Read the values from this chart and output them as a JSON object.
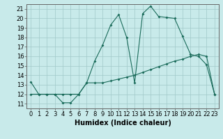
{
  "title": "",
  "xlabel": "Humidex (Indice chaleur)",
  "bg_color": "#c8eaea",
  "grid_color": "#a0c8c8",
  "line_color": "#1a6b5a",
  "xlim": [
    -0.5,
    23.5
  ],
  "ylim": [
    10.5,
    21.5
  ],
  "yticks": [
    11,
    12,
    13,
    14,
    15,
    16,
    17,
    18,
    19,
    20,
    21
  ],
  "xticks": [
    0,
    1,
    2,
    3,
    4,
    5,
    6,
    7,
    8,
    9,
    10,
    11,
    12,
    13,
    14,
    15,
    16,
    17,
    18,
    19,
    20,
    21,
    22,
    23
  ],
  "humidex_curve_x": [
    0,
    1,
    2,
    3,
    4,
    5,
    6,
    7,
    8,
    9,
    10,
    11,
    12,
    13,
    14,
    15,
    16,
    17,
    18,
    19,
    20,
    21,
    22,
    23
  ],
  "humidex_curve_y": [
    13.3,
    12.0,
    12.0,
    12.0,
    11.1,
    11.1,
    12.0,
    13.2,
    15.5,
    17.2,
    19.3,
    20.4,
    18.0,
    13.2,
    20.5,
    21.3,
    20.2,
    20.1,
    20.0,
    18.1,
    16.2,
    16.0,
    15.1,
    12.0
  ],
  "linear_x": [
    0,
    1,
    2,
    3,
    4,
    5,
    6,
    7,
    8,
    9,
    10,
    11,
    12,
    13,
    14,
    15,
    16,
    17,
    18,
    19,
    20,
    21,
    22,
    23
  ],
  "linear_y": [
    12.0,
    12.0,
    12.0,
    12.0,
    12.0,
    12.0,
    12.0,
    13.2,
    13.2,
    13.2,
    13.4,
    13.6,
    13.8,
    14.0,
    14.3,
    14.6,
    14.9,
    15.2,
    15.5,
    15.7,
    16.0,
    16.2,
    16.0,
    12.0
  ],
  "tick_fontsize": 6,
  "xlabel_fontsize": 7
}
